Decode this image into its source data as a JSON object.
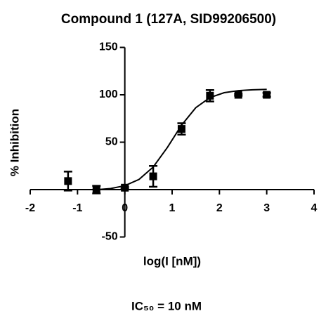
{
  "chart_data": {
    "type": "scatter",
    "title": "Compound 1 (127A, SID99206500)",
    "y_label": "% Inhibition",
    "x_label": "log(I [nM])",
    "annotation": "IC₅₀ = 10 nM",
    "x": [
      -1.2,
      -0.6,
      0,
      0.6,
      1.2,
      1.8,
      2.4,
      3
    ],
    "values": [
      9,
      0,
      2,
      14,
      64,
      99,
      100,
      100
    ],
    "errors": [
      10,
      4,
      1,
      11,
      6,
      6,
      1,
      2
    ],
    "color": "#000000",
    "curve": {
      "x": [
        -0.6,
        -0.3,
        0,
        0.3,
        0.6,
        0.9,
        1.2,
        1.5,
        1.8,
        2.1,
        2.4,
        2.7,
        3
      ],
      "values": [
        -0.1,
        1.1,
        4.1,
        10.7,
        23.8,
        44.5,
        68,
        86.4,
        97.1,
        102.2,
        104.4,
        105.3,
        105.7
      ]
    },
    "xlim": [
      -2,
      4
    ],
    "xticks": [
      -2,
      -1,
      0,
      1,
      2,
      3,
      4
    ],
    "ylim": [
      -50,
      150
    ],
    "yticks": [
      -50,
      50,
      100,
      150
    ],
    "grid": false
  }
}
